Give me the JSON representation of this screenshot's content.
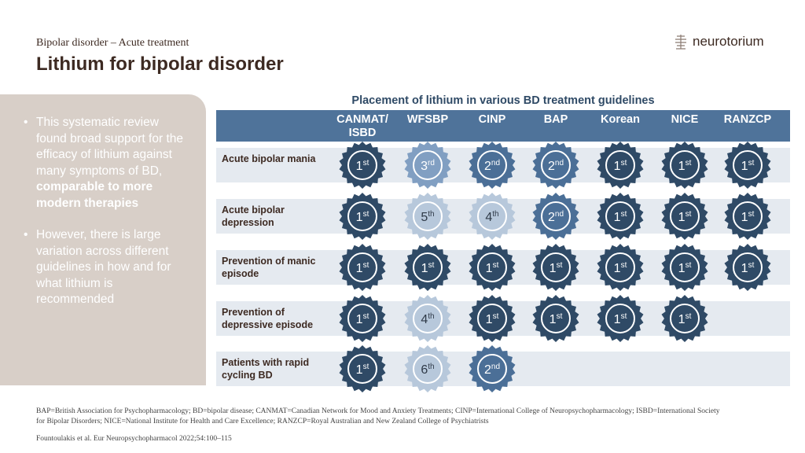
{
  "header": {
    "subtitle": "Bipolar disorder – Acute treatment",
    "title": "Lithium for bipolar disorder",
    "logo": "neurotorium"
  },
  "panel": {
    "bullets": [
      {
        "text": "This systematic review found broad support for the efficacy of lithium against many symptoms of BD, ",
        "bold": "comparable to more modern therapies"
      },
      {
        "text": "However, there is large variation across different guidelines  in how and for what lithium is recommended",
        "bold": ""
      }
    ]
  },
  "table": {
    "title": "Placement of lithium in various BD treatment guidelines",
    "columns": [
      "CANMAT/ ISBD",
      "WFSBP",
      "CINP",
      "BAP",
      "Korean",
      "NICE",
      "RANZCP"
    ],
    "rows": [
      {
        "label": "Acute bipolar mania",
        "ranks": [
          "1st",
          "3rd",
          "2nd",
          "2nd",
          "1st",
          "1st",
          "1st"
        ]
      },
      {
        "label": "Acute bipolar depression",
        "ranks": [
          "1st",
          "5th",
          "4th",
          "2nd",
          "1st",
          "1st",
          "1st"
        ]
      },
      {
        "label": "Prevention of manic episode",
        "ranks": [
          "1st",
          "1st",
          "1st",
          "1st",
          "1st",
          "1st",
          "1st"
        ]
      },
      {
        "label": "Prevention of depressive episode",
        "ranks": [
          "1st",
          "4th",
          "1st",
          "1st",
          "1st",
          "1st",
          null
        ]
      },
      {
        "label": "Patients with rapid cycling BD",
        "ranks": [
          "1st",
          "6th",
          "2nd",
          null,
          null,
          null,
          null
        ]
      }
    ],
    "rank_colors": {
      "1": "#2f4a66",
      "2": "#4b6f97",
      "3": "#819fc2",
      "4": "#b7c8db",
      "5": "#b7c8db",
      "6": "#b7c8db"
    }
  },
  "footnote": "BAP=British Association for Psychopharmacology; BD=bipolar disease; CANMAT=Canadian Network for Mood and Anxiety Treatments; CINP=International College of Neuropsychopharmacology; ISBD=International Society for Bipolar Disorders; NICE=National Institute for Health and Care Excellence; RANZCP=Royal Australian and New Zealand College of Psychiatrists",
  "reference": "Fountoulakis et al. Eur Neuropsychopharmacol 2022;54:100–115"
}
